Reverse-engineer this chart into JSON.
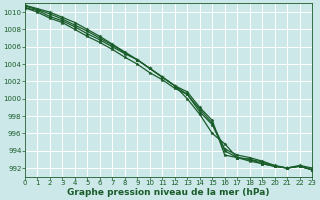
{
  "title": "Graphe pression niveau de la mer (hPa)",
  "bg_color": "#cce8e8",
  "grid_color": "#ffffff",
  "line_color": "#1a5c2a",
  "xlim": [
    0,
    23
  ],
  "ylim": [
    991.0,
    1011.0
  ],
  "ytick_values": [
    992,
    994,
    996,
    998,
    1000,
    1002,
    1004,
    1006,
    1008,
    1010
  ],
  "xtick_values": [
    0,
    1,
    2,
    3,
    4,
    5,
    6,
    7,
    8,
    9,
    10,
    11,
    12,
    13,
    14,
    15,
    16,
    17,
    18,
    19,
    20,
    21,
    22,
    23
  ],
  "series": [
    [
      1010.5,
      1010.2,
      1009.5,
      1009.0,
      1008.3,
      1007.5,
      1006.8,
      1006.0,
      1005.2,
      1004.5,
      1003.5,
      1002.5,
      1001.5,
      1000.0,
      998.2,
      996.0,
      994.8,
      993.2,
      993.0,
      992.5,
      992.2,
      992.0,
      992.2,
      991.8
    ],
    [
      1010.5,
      1010.0,
      1009.3,
      1008.8,
      1008.0,
      1007.2,
      1006.5,
      1005.7,
      1004.8,
      1004.0,
      1003.0,
      1002.2,
      1001.2,
      1000.5,
      998.8,
      997.2,
      994.2,
      993.5,
      993.2,
      992.8,
      992.3,
      992.0,
      992.3,
      992.0
    ],
    [
      1010.7,
      1010.3,
      1009.8,
      1009.2,
      1008.5,
      1007.8,
      1007.0,
      1006.2,
      1005.3,
      1004.5,
      1003.5,
      1002.5,
      1001.5,
      1000.8,
      999.0,
      997.5,
      993.5,
      993.2,
      993.0,
      992.7,
      992.2,
      992.0,
      992.2,
      991.8
    ],
    [
      1010.8,
      1010.4,
      1010.0,
      1009.4,
      1008.8,
      1008.0,
      1007.2,
      1006.3,
      1005.4,
      1004.5,
      1003.5,
      1002.5,
      1001.5,
      1000.5,
      998.5,
      997.0,
      994.0,
      993.2,
      992.8,
      992.5,
      992.2,
      992.0,
      992.2,
      991.8
    ]
  ],
  "title_fontsize": 6.5,
  "tick_fontsize": 5.0,
  "linewidth": 0.9,
  "markersize": 2.5
}
